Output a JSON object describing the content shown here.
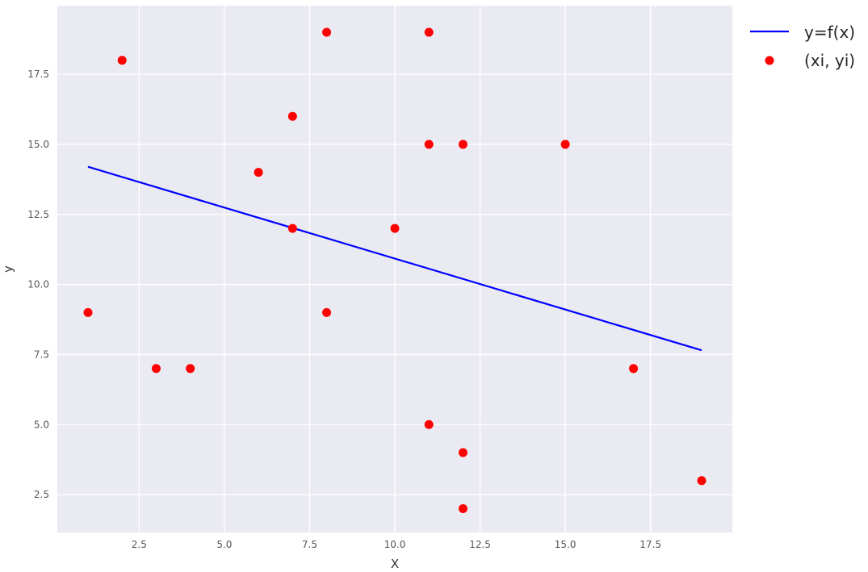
{
  "chart_data": {
    "type": "scatter",
    "title": "",
    "xlabel": "X",
    "ylabel": "y",
    "xlim": [
      0.1,
      19.9
    ],
    "ylim": [
      1.15,
      19.95
    ],
    "xticks": [
      2.5,
      5.0,
      7.5,
      10.0,
      12.5,
      15.0,
      17.5
    ],
    "xtick_labels": [
      "2.5",
      "5.0",
      "7.5",
      "10.0",
      "12.5",
      "15.0",
      "17.5"
    ],
    "yticks": [
      2.5,
      5.0,
      7.5,
      10.0,
      12.5,
      15.0,
      17.5
    ],
    "ytick_labels": [
      "2.5",
      "5.0",
      "7.5",
      "10.0",
      "12.5",
      "15.0",
      "17.5"
    ],
    "grid": true,
    "legend_position": "outside right, top",
    "background_color": "#EAEAF2",
    "grid_color": "#FFFFFF",
    "series": [
      {
        "name": "y=f(x)",
        "kind": "line",
        "color": "#0000FF",
        "x": [
          1,
          19
        ],
        "y": [
          14.2,
          7.65
        ]
      },
      {
        "name": "(xi, yi)",
        "kind": "scatter",
        "color": "#FF0000",
        "x": [
          1,
          2,
          3,
          4,
          6,
          7,
          7,
          8,
          8,
          10,
          11,
          11,
          11,
          12,
          12,
          12,
          15,
          17,
          19
        ],
        "y": [
          9,
          18,
          7,
          7,
          14,
          16,
          12,
          19,
          9,
          12,
          19,
          15,
          5,
          15,
          4,
          2,
          15,
          7,
          3
        ]
      }
    ]
  }
}
